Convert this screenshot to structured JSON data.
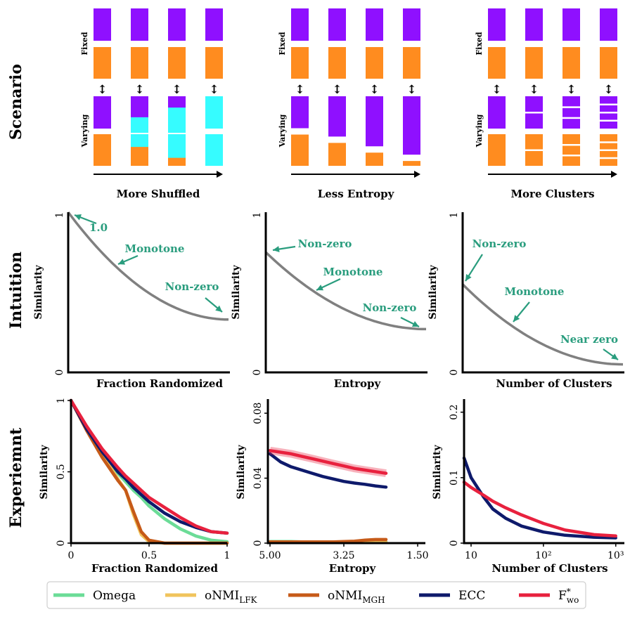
{
  "row_labels": [
    "Scenario",
    "Intuition",
    "Experiemnt"
  ],
  "colors": {
    "purple": "#8f10ff",
    "orange": "#ff8c1f",
    "cyan": "#36fcff",
    "gray_curve": "#808080",
    "annotation": "#2a9d7e",
    "omega": "#6bdc97",
    "onmi_lfk": "#f0c45c",
    "onmi_mgh": "#c65a18",
    "ecc": "#0e1a6b",
    "fwo": "#e8213e"
  },
  "scenario": {
    "fixed_label": "Fixed",
    "varying_label": "Varying",
    "arrow_glyph": "↕",
    "panels": [
      {
        "xlabel": "More Shuffled",
        "kind": "shuffle",
        "shuffle_fraction": [
          0,
          0.35,
          0.65,
          1.0
        ]
      },
      {
        "xlabel": "Less Entropy",
        "kind": "entropy",
        "purple_share": [
          0.5,
          0.62,
          0.76,
          0.88
        ]
      },
      {
        "xlabel": "More Clusters",
        "kind": "clusters",
        "clusters_per_block": [
          1,
          2,
          3,
          4
        ]
      }
    ]
  },
  "intuition": {
    "ylabel": "Similarity",
    "ytick_labels": [
      "0",
      "1"
    ],
    "panels": [
      {
        "xlabel": "Fraction Randomized",
        "start": 1.0,
        "end": 0.33,
        "annotations": [
          "1.0",
          "Monotone",
          "Non-zero"
        ]
      },
      {
        "xlabel": "Entropy",
        "start": 0.75,
        "end": 0.27,
        "annotations": [
          "Non-zero",
          "Monotone",
          "Non-zero"
        ]
      },
      {
        "xlabel": "Number of Clusters",
        "start": 0.55,
        "end": 0.05,
        "annotations": [
          "Non-zero",
          "Monotone",
          "Near zero"
        ]
      }
    ]
  },
  "chart_data": [
    {
      "type": "line",
      "xlabel": "Fraction Randomized",
      "ylabel": "Similarity",
      "xlim": [
        0,
        1
      ],
      "ylim": [
        0,
        1
      ],
      "xtick_labels": [
        "0",
        "0.5",
        "1"
      ],
      "xtick_values": [
        0,
        0.5,
        1
      ],
      "ytick_labels": [
        "0",
        "0.5",
        "1"
      ],
      "ytick_values": [
        0,
        0.5,
        1
      ],
      "x": [
        0,
        0.1,
        0.2,
        0.3,
        0.35,
        0.4,
        0.45,
        0.5,
        0.6,
        0.7,
        0.8,
        0.9,
        1.0
      ],
      "series": [
        {
          "name": "Omega",
          "key": "omega",
          "values": [
            1.0,
            0.8,
            0.63,
            0.49,
            0.43,
            0.37,
            0.32,
            0.26,
            0.17,
            0.1,
            0.05,
            0.02,
            0.01
          ]
        },
        {
          "name": "oNMI_LFK",
          "key": "onmi_lfk",
          "values": [
            1.0,
            0.8,
            0.62,
            0.45,
            0.37,
            0.2,
            0.06,
            0.01,
            0.0,
            0.0,
            0.0,
            0.0,
            0.0
          ]
        },
        {
          "name": "oNMI_MGH",
          "key": "onmi_mgh",
          "values": [
            1.0,
            0.79,
            0.6,
            0.44,
            0.37,
            0.22,
            0.08,
            0.02,
            0.0,
            0.0,
            0.0,
            0.0,
            0.0
          ]
        },
        {
          "name": "ECC",
          "key": "ecc",
          "values": [
            1.0,
            0.8,
            0.64,
            0.5,
            0.45,
            0.39,
            0.34,
            0.29,
            0.21,
            0.15,
            0.11,
            0.08,
            0.07
          ]
        },
        {
          "name": "F*wo",
          "key": "fwo",
          "values": [
            1.0,
            0.82,
            0.66,
            0.53,
            0.47,
            0.42,
            0.37,
            0.32,
            0.25,
            0.18,
            0.12,
            0.08,
            0.07
          ]
        }
      ]
    },
    {
      "type": "line",
      "xlabel": "Entropy",
      "ylabel": "Similarity",
      "xlim": [
        5.0,
        1.5
      ],
      "ylim": [
        0,
        0.09
      ],
      "xtick_labels": [
        "5.00",
        "3.25",
        "1.50"
      ],
      "xtick_values": [
        5.0,
        3.25,
        1.5
      ],
      "ytick_labels": [
        "0",
        "0.04",
        "0.08"
      ],
      "ytick_values": [
        0,
        0.04,
        0.08
      ],
      "x": [
        5.0,
        4.75,
        4.5,
        4.25,
        4.0,
        3.75,
        3.5,
        3.25,
        3.0,
        2.75,
        2.5,
        2.25
      ],
      "series": [
        {
          "name": "Omega",
          "key": "omega",
          "values": [
            0.001,
            0.001,
            0.001,
            0.0008,
            0.0008,
            0.0008,
            0.0008,
            0.0008,
            0.0008,
            0.0008,
            0.0008,
            0.0008
          ]
        },
        {
          "name": "oNMI_LFK",
          "key": "onmi_lfk",
          "values": [
            0.0005,
            0.0005,
            0.0005,
            0.0005,
            0.0005,
            0.0005,
            0.0005,
            0.0005,
            0.0005,
            0.0005,
            0.0005,
            0.0005
          ]
        },
        {
          "name": "oNMI_MGH",
          "key": "onmi_mgh",
          "values": [
            0.0008,
            0.0008,
            0.0008,
            0.0008,
            0.0008,
            0.0008,
            0.0008,
            0.001,
            0.0012,
            0.0018,
            0.0022,
            0.0022
          ]
        },
        {
          "name": "ECC",
          "key": "ecc",
          "values": [
            0.055,
            0.05,
            0.047,
            0.045,
            0.043,
            0.041,
            0.0395,
            0.038,
            0.037,
            0.0362,
            0.0352,
            0.0345
          ]
        },
        {
          "name": "F*wo",
          "key": "fwo",
          "values": [
            0.057,
            0.056,
            0.055,
            0.0535,
            0.052,
            0.0505,
            0.049,
            0.0475,
            0.046,
            0.045,
            0.044,
            0.043
          ]
        }
      ]
    },
    {
      "type": "line",
      "xlabel": "Number of Clusters",
      "ylabel": "Similarity",
      "xscale": "log",
      "xlim": [
        8,
        1100
      ],
      "ylim": [
        0,
        0.22
      ],
      "xtick_labels": [
        "10",
        "10²",
        "10³"
      ],
      "xtick_values": [
        10,
        100,
        1000
      ],
      "ytick_labels": [
        "0",
        "0.1",
        "0.2"
      ],
      "ytick_values": [
        0,
        0.1,
        0.2
      ],
      "x": [
        8,
        10,
        15,
        20,
        30,
        50,
        100,
        200,
        500,
        1000
      ],
      "series": [
        {
          "name": "ECC",
          "key": "ecc",
          "values": [
            0.13,
            0.1,
            0.07,
            0.052,
            0.038,
            0.026,
            0.017,
            0.012,
            0.009,
            0.008
          ]
        },
        {
          "name": "F*wo",
          "key": "fwo",
          "values": [
            0.093,
            0.085,
            0.073,
            0.064,
            0.054,
            0.043,
            0.03,
            0.02,
            0.013,
            0.011
          ]
        }
      ]
    }
  ],
  "legend": [
    {
      "key": "omega",
      "label": "Omega",
      "sub": ""
    },
    {
      "key": "onmi_lfk",
      "label": "oNMI",
      "sub": "LFK"
    },
    {
      "key": "onmi_mgh",
      "label": "oNMI",
      "sub": "MGH"
    },
    {
      "key": "ecc",
      "label": "ECC",
      "sub": ""
    },
    {
      "key": "fwo",
      "label": "F",
      "sub": "wo",
      "sup": "*"
    }
  ]
}
